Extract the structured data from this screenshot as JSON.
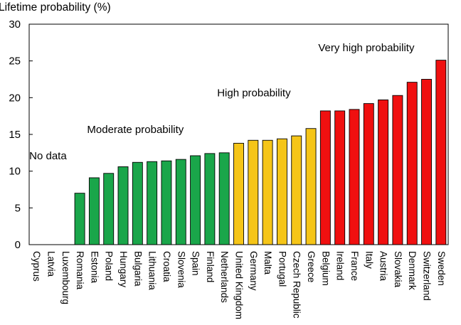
{
  "chart_data": {
    "type": "bar",
    "ylabel": "Lifetime probability (%)",
    "xlabel": "",
    "ylim": [
      0,
      30
    ],
    "yticks": [
      0,
      5,
      10,
      15,
      20,
      25,
      30
    ],
    "grid": false,
    "categories": [
      "Cyprus",
      "Latvia",
      "Luxembourg",
      "Romania",
      "Estonia",
      "Poland",
      "Hungary",
      "Bulgaria",
      "Lithuania",
      "Croatia",
      "Slovenia",
      "Spain",
      "Finland",
      "Netherlands",
      "United Kingdom",
      "Germany",
      "Malta",
      "Portugal",
      "Czech Republic",
      "Greece",
      "Belgium",
      "Ireland",
      "France",
      "Italy",
      "Austria",
      "Slovakia",
      "Denmark",
      "Switzerland",
      "Sweden"
    ],
    "values": [
      null,
      null,
      null,
      7.0,
      9.1,
      9.7,
      10.6,
      11.2,
      11.3,
      11.4,
      11.6,
      12.1,
      12.4,
      12.5,
      13.8,
      14.2,
      14.2,
      14.4,
      14.8,
      15.8,
      18.2,
      18.2,
      18.4,
      19.2,
      19.7,
      20.3,
      22.1,
      22.5,
      25.1
    ],
    "groups": [
      "none",
      "none",
      "none",
      "moderate",
      "moderate",
      "moderate",
      "moderate",
      "moderate",
      "moderate",
      "moderate",
      "moderate",
      "moderate",
      "moderate",
      "moderate",
      "high",
      "high",
      "high",
      "high",
      "high",
      "high",
      "very_high",
      "very_high",
      "very_high",
      "very_high",
      "very_high",
      "very_high",
      "very_high",
      "very_high",
      "very_high"
    ],
    "group_colors": {
      "moderate": "#1aa64a",
      "high": "#f5c518",
      "very_high": "#f01010"
    },
    "annotations": [
      {
        "text": "No data",
        "at_category": "Cyprus",
        "y": 11.6
      },
      {
        "text": "Moderate probability",
        "at_category": "Estonia",
        "y": 15.2
      },
      {
        "text": "High probability",
        "at_category": "Netherlands",
        "y": 20.2
      },
      {
        "text": "Very high probability",
        "at_category": "Belgium",
        "y": 26.3
      }
    ]
  }
}
